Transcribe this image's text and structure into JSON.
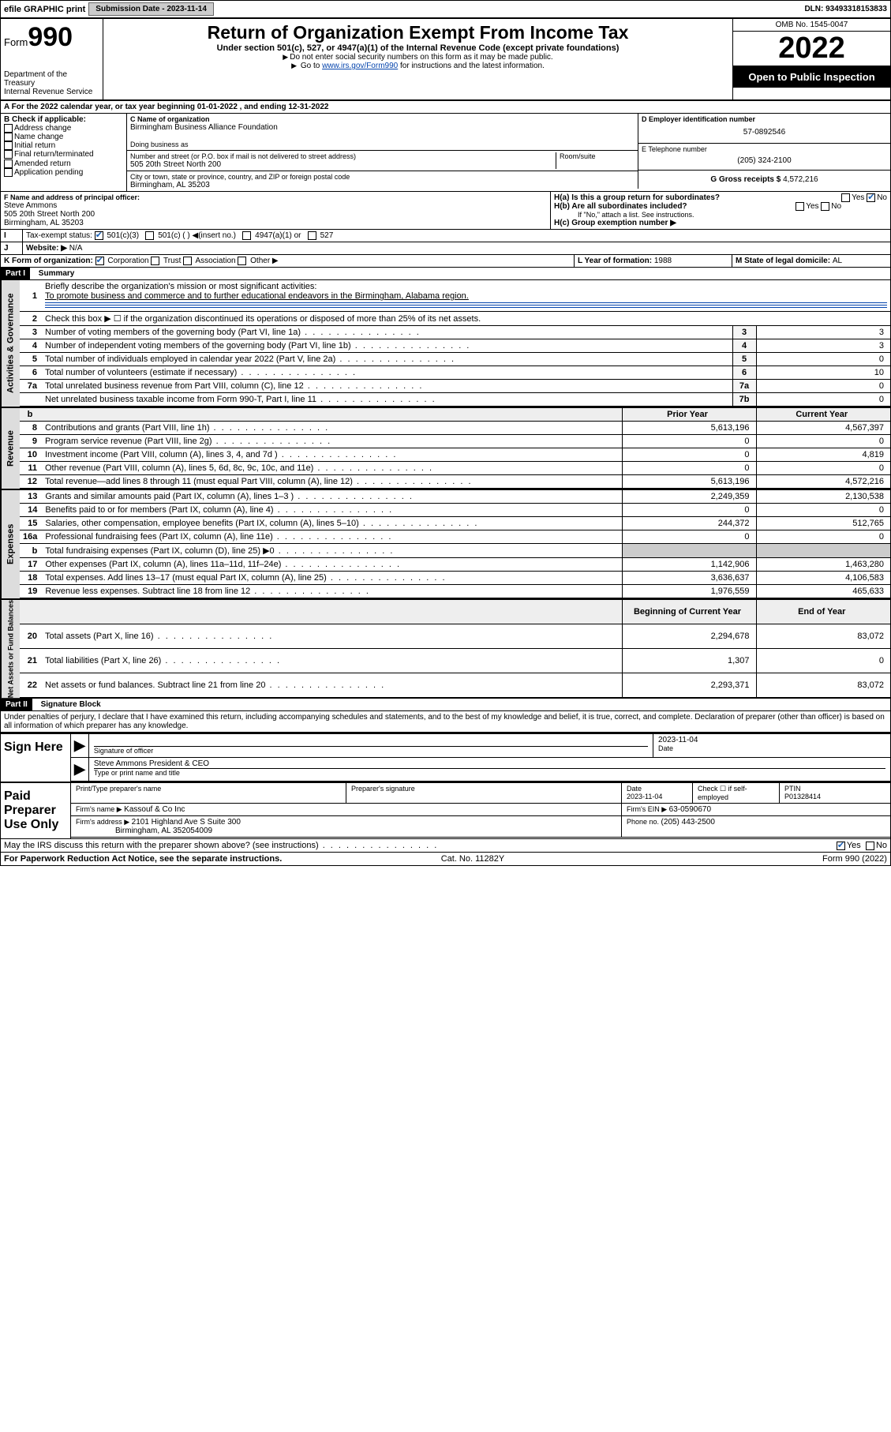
{
  "topbar": {
    "efile": "efile GRAPHIC print",
    "subdate_lbl": "Submission Date - ",
    "subdate": "2023-11-14",
    "dln_lbl": "DLN: ",
    "dln": "93493318153833"
  },
  "header": {
    "form_word": "Form",
    "form_num": "990",
    "dept1": "Department of the Treasury",
    "dept2": "Internal Revenue Service",
    "title": "Return of Organization Exempt From Income Tax",
    "sub1": "Under section 501(c), 527, or 4947(a)(1) of the Internal Revenue Code (except private foundations)",
    "sub2": "Do not enter social security numbers on this form as it may be made public.",
    "sub3a": "Go to ",
    "sub3_link": "www.irs.gov/Form990",
    "sub3b": " for instructions and the latest information.",
    "omb": "OMB No. 1545-0047",
    "year": "2022",
    "open": "Open to Public Inspection"
  },
  "A": {
    "prefix": "A For the 2022 calendar year, or tax year beginning ",
    "begin": "01-01-2022",
    "mid": " , and ending ",
    "end": "12-31-2022"
  },
  "B": {
    "label": "B Check if applicable:",
    "opts": [
      "Address change",
      "Name change",
      "Initial return",
      "Final return/terminated",
      "Amended return",
      "Application pending"
    ]
  },
  "C": {
    "name_lbl": "C Name of organization",
    "name": "Birmingham Business Alliance Foundation",
    "dba_lbl": "Doing business as",
    "addr_lbl": "Number and street (or P.O. box if mail is not delivered to street address)",
    "room_lbl": "Room/suite",
    "addr": "505 20th Street North 200",
    "city_lbl": "City or town, state or province, country, and ZIP or foreign postal code",
    "city": "Birmingham, AL  35203"
  },
  "D": {
    "label": "D Employer identification number",
    "ein": "57-0892546"
  },
  "E": {
    "label": "E Telephone number",
    "phone": "(205) 324-2100"
  },
  "G": {
    "label": "G Gross receipts $ ",
    "val": "4,572,216"
  },
  "F": {
    "label": "F Name and address of principal officer:",
    "name": "Steve Ammons",
    "addr1": "505 20th Street North 200",
    "addr2": "Birmingham, AL  35203"
  },
  "H": {
    "a": "H(a)  Is this a group return for subordinates?",
    "b": "H(b)  Are all subordinates included?",
    "bnote": "If \"No,\" attach a list. See instructions.",
    "c": "H(c)  Group exemption number ▶",
    "yes": "Yes",
    "no": "No"
  },
  "I": {
    "label": "Tax-exempt status:",
    "o1": "501(c)(3)",
    "o2": "501(c) ( ) ◀(insert no.)",
    "o3": "4947(a)(1) or",
    "o4": "527"
  },
  "J": {
    "label": "Website: ▶",
    "val": "N/A"
  },
  "K": {
    "label": "K Form of organization:",
    "o1": "Corporation",
    "o2": "Trust",
    "o3": "Association",
    "o4": "Other ▶"
  },
  "L": {
    "label": "L Year of formation: ",
    "val": "1988"
  },
  "M": {
    "label": "M State of legal domicile: ",
    "val": "AL"
  },
  "part1": {
    "tag": "Part I",
    "title": "Summary"
  },
  "sections": {
    "gov": "Activities & Governance",
    "rev": "Revenue",
    "exp": "Expenses",
    "net": "Net Assets or Fund Balances"
  },
  "summary": {
    "l1a": "Briefly describe the organization's mission or most significant activities:",
    "l1b": "To promote business and commerce and to further educational endeavors in the Birmingham, Alabama region.",
    "l2": "Check this box ▶ ☐  if the organization discontinued its operations or disposed of more than 25% of its net assets.",
    "rows_gov": [
      {
        "n": "3",
        "t": "Number of voting members of the governing body (Part VI, line 1a)",
        "b": "3",
        "v": "3"
      },
      {
        "n": "4",
        "t": "Number of independent voting members of the governing body (Part VI, line 1b)",
        "b": "4",
        "v": "3"
      },
      {
        "n": "5",
        "t": "Total number of individuals employed in calendar year 2022 (Part V, line 2a)",
        "b": "5",
        "v": "0"
      },
      {
        "n": "6",
        "t": "Total number of volunteers (estimate if necessary)",
        "b": "6",
        "v": "10"
      },
      {
        "n": "7a",
        "t": "Total unrelated business revenue from Part VIII, column (C), line 12",
        "b": "7a",
        "v": "0"
      },
      {
        "n": "",
        "t": "Net unrelated business taxable income from Form 990-T, Part I, line 11",
        "b": "7b",
        "v": "0"
      }
    ],
    "col_prior": "Prior Year",
    "col_curr": "Current Year",
    "rows_rev": [
      {
        "n": "8",
        "t": "Contributions and grants (Part VIII, line 1h)",
        "p": "5,613,196",
        "c": "4,567,397"
      },
      {
        "n": "9",
        "t": "Program service revenue (Part VIII, line 2g)",
        "p": "0",
        "c": "0"
      },
      {
        "n": "10",
        "t": "Investment income (Part VIII, column (A), lines 3, 4, and 7d )",
        "p": "0",
        "c": "4,819"
      },
      {
        "n": "11",
        "t": "Other revenue (Part VIII, column (A), lines 5, 6d, 8c, 9c, 10c, and 11e)",
        "p": "0",
        "c": "0"
      },
      {
        "n": "12",
        "t": "Total revenue—add lines 8 through 11 (must equal Part VIII, column (A), line 12)",
        "p": "5,613,196",
        "c": "4,572,216"
      }
    ],
    "rows_exp": [
      {
        "n": "13",
        "t": "Grants and similar amounts paid (Part IX, column (A), lines 1–3 )",
        "p": "2,249,359",
        "c": "2,130,538"
      },
      {
        "n": "14",
        "t": "Benefits paid to or for members (Part IX, column (A), line 4)",
        "p": "0",
        "c": "0"
      },
      {
        "n": "15",
        "t": "Salaries, other compensation, employee benefits (Part IX, column (A), lines 5–10)",
        "p": "244,372",
        "c": "512,765"
      },
      {
        "n": "16a",
        "t": "Professional fundraising fees (Part IX, column (A), line 11e)",
        "p": "0",
        "c": "0"
      },
      {
        "n": "b",
        "t": "Total fundraising expenses (Part IX, column (D), line 25) ▶0",
        "p": "",
        "c": "",
        "grey": true
      },
      {
        "n": "17",
        "t": "Other expenses (Part IX, column (A), lines 11a–11d, 11f–24e)",
        "p": "1,142,906",
        "c": "1,463,280"
      },
      {
        "n": "18",
        "t": "Total expenses. Add lines 13–17 (must equal Part IX, column (A), line 25)",
        "p": "3,636,637",
        "c": "4,106,583"
      },
      {
        "n": "19",
        "t": "Revenue less expenses. Subtract line 18 from line 12",
        "p": "1,976,559",
        "c": "465,633"
      }
    ],
    "col_begin": "Beginning of Current Year",
    "col_end": "End of Year",
    "rows_net": [
      {
        "n": "20",
        "t": "Total assets (Part X, line 16)",
        "p": "2,294,678",
        "c": "83,072"
      },
      {
        "n": "21",
        "t": "Total liabilities (Part X, line 26)",
        "p": "1,307",
        "c": "0"
      },
      {
        "n": "22",
        "t": "Net assets or fund balances. Subtract line 21 from line 20",
        "p": "2,293,371",
        "c": "83,072"
      }
    ]
  },
  "part2": {
    "tag": "Part II",
    "title": "Signature Block"
  },
  "decl": "Under penalties of perjury, I declare that I have examined this return, including accompanying schedules and statements, and to the best of my knowledge and belief, it is true, correct, and complete. Declaration of preparer (other than officer) is based on all information of which preparer has any knowledge.",
  "sign": {
    "here": "Sign Here",
    "sigoff": "Signature of officer",
    "date_lbl": "Date",
    "date": "2023-11-04",
    "officer": "Steve Ammons  President & CEO",
    "typename": "Type or print name and title"
  },
  "paid": {
    "label": "Paid Preparer Use Only",
    "h1": "Print/Type preparer's name",
    "h2": "Preparer's signature",
    "h3": "Date",
    "h4": "Check ☐ if self-employed",
    "h5": "PTIN",
    "date": "2023-11-04",
    "ptin": "P01328414",
    "firm_lbl": "Firm's name  ▶ ",
    "firm": "Kassouf & Co Inc",
    "ein_lbl": "Firm's EIN ▶ ",
    "ein": "63-0590670",
    "addr_lbl": "Firm's address ▶ ",
    "addr1": "2101 Highland Ave S Suite 300",
    "addr2": "Birmingham, AL  352054009",
    "phone_lbl": "Phone no. ",
    "phone": "(205) 443-2500"
  },
  "footer": {
    "q": "May the IRS discuss this return with the preparer shown above? (see instructions)",
    "yes": "Yes",
    "no": "No",
    "pra": "For Paperwork Reduction Act Notice, see the separate instructions.",
    "cat": "Cat. No. 11282Y",
    "form": "Form 990 (2022)"
  }
}
